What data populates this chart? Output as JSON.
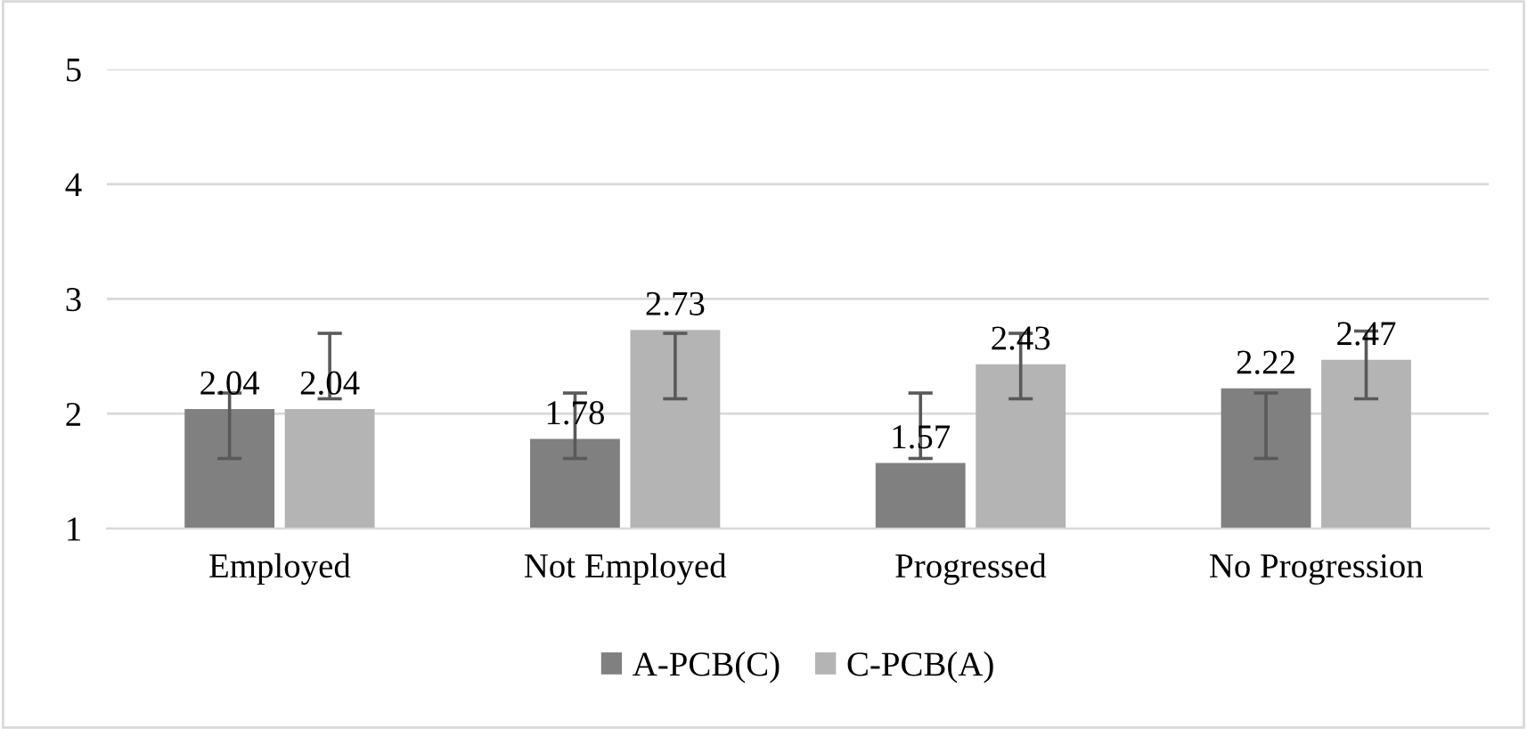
{
  "chart_data": {
    "type": "bar",
    "categories": [
      "Employed",
      "Not Employed",
      "Progressed",
      "No Progression"
    ],
    "series": [
      {
        "name": "A-PCB(C)",
        "color": "#808080",
        "values": [
          2.04,
          1.78,
          1.57,
          2.22
        ],
        "errors": [
          [
            1.61,
            2.18
          ],
          [
            1.61,
            2.18
          ],
          [
            1.61,
            2.18
          ],
          [
            1.61,
            2.18
          ]
        ]
      },
      {
        "name": "C-PCB(A)",
        "color": "#b4b4b4",
        "values": [
          2.04,
          2.73,
          2.43,
          2.47
        ],
        "errors": [
          [
            2.13,
            2.7
          ],
          [
            2.13,
            2.7
          ],
          [
            2.13,
            2.7
          ],
          [
            2.13,
            2.72
          ]
        ]
      }
    ],
    "ylim": [
      1,
      5
    ],
    "yticks": [
      1,
      2,
      3,
      4,
      5
    ],
    "grid": "y",
    "legend": "bottom",
    "data_labels": true
  }
}
